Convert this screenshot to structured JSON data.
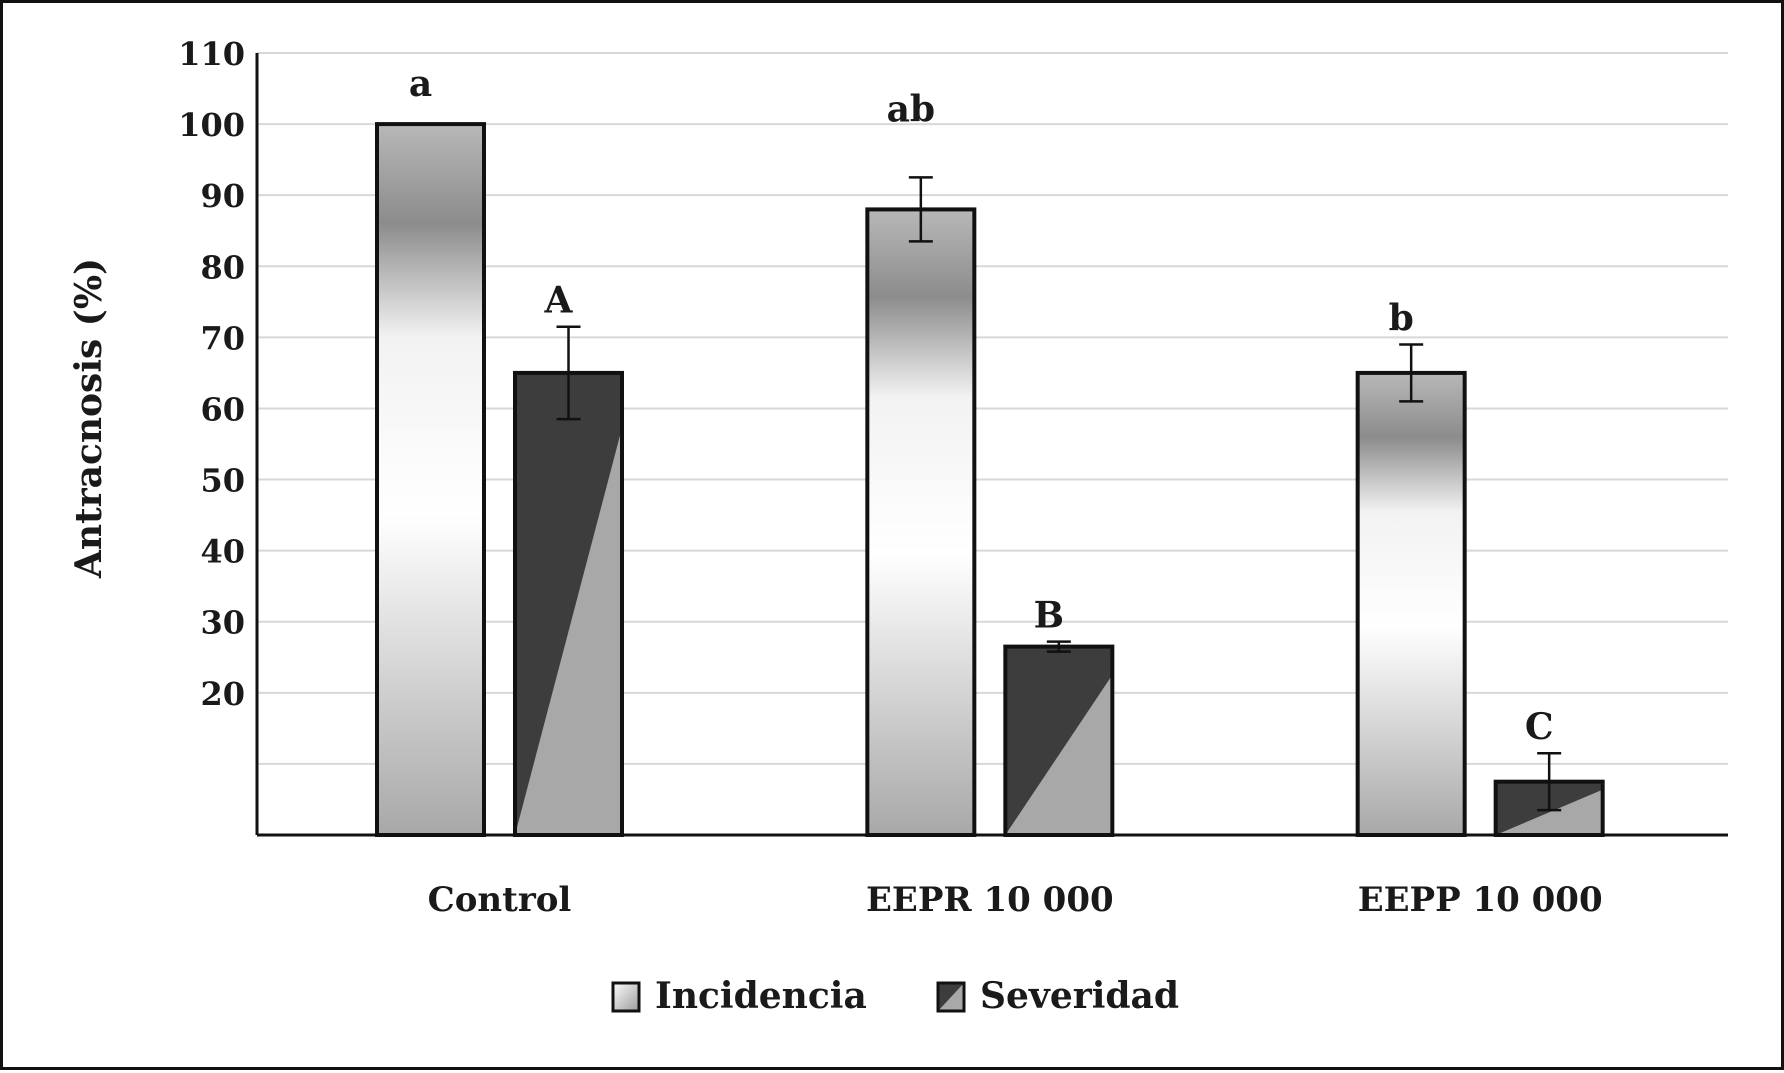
{
  "chart_data": {
    "type": "bar",
    "ylabel": "Antracnosis (%)",
    "xlabel": "",
    "ylim": [
      0,
      110
    ],
    "yticks": [
      20,
      30,
      40,
      50,
      60,
      70,
      80,
      90,
      100,
      110
    ],
    "grid": true,
    "categories": [
      "Control",
      "EEPR 10 000",
      "EEPP 10 000"
    ],
    "series": [
      {
        "name": "Incidencia",
        "values": [
          100,
          88,
          65
        ],
        "errors": [
          null,
          4.5,
          4
        ],
        "significance": [
          "a",
          "ab",
          "b"
        ]
      },
      {
        "name": "Severidad",
        "values": [
          65,
          26.5,
          7.5
        ],
        "errors": [
          6.5,
          0.7,
          4
        ],
        "significance": [
          "A",
          "B",
          "C"
        ]
      }
    ],
    "legend": {
      "position": "bottom-center"
    },
    "colors": {
      "dark": "#3d3d3d",
      "light_hatch": "#a8a8a8",
      "grid": "#d8d8d8",
      "axis": "#111111"
    }
  }
}
